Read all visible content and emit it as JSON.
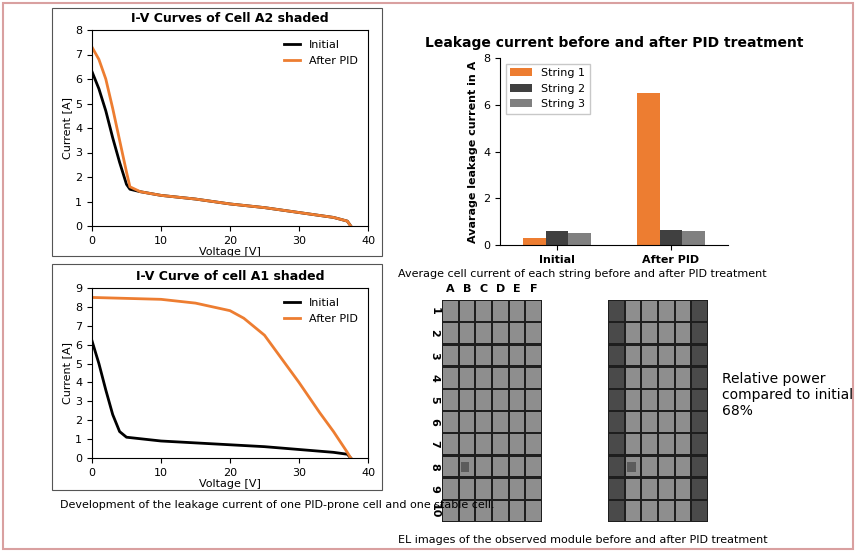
{
  "chart_data": [
    {
      "type": "line",
      "title": "I-V Curves of Cell A2 shaded",
      "x_label": "Voltage [V]",
      "y_label": "Current [A]",
      "xlim": [
        0,
        40
      ],
      "xticks": [
        0,
        10,
        20,
        30,
        40
      ],
      "ylim": [
        0,
        8
      ],
      "yticks": [
        0,
        1,
        2,
        3,
        4,
        5,
        6,
        7,
        8
      ],
      "grid": false,
      "legend": "upper right",
      "series": [
        {
          "name": "Initial",
          "color": "#000000",
          "line_style": "solid",
          "x": [
            0,
            1,
            2,
            3,
            4,
            5,
            5.5,
            7,
            10,
            15,
            20,
            25,
            30,
            35,
            37,
            37.5
          ],
          "values": [
            6.3,
            5.6,
            4.7,
            3.6,
            2.6,
            1.7,
            1.5,
            1.4,
            1.25,
            1.1,
            0.9,
            0.75,
            0.55,
            0.35,
            0.2,
            0
          ]
        },
        {
          "name": "After PID",
          "color": "#ED7D31",
          "line_style": "solid",
          "x": [
            0,
            1,
            2,
            3,
            4,
            5,
            5.5,
            7,
            10,
            15,
            20,
            25,
            30,
            35,
            37,
            37.5
          ],
          "values": [
            7.3,
            6.8,
            6.0,
            4.8,
            3.5,
            2.2,
            1.6,
            1.4,
            1.25,
            1.1,
            0.9,
            0.75,
            0.55,
            0.35,
            0.2,
            0
          ]
        }
      ]
    },
    {
      "type": "line",
      "title": "I-V Curve of cell A1 shaded",
      "x_label": "Voltage [V]",
      "y_label": "Current [A]",
      "xlim": [
        0,
        40
      ],
      "xticks": [
        0,
        10,
        20,
        30,
        40
      ],
      "ylim": [
        0,
        9
      ],
      "yticks": [
        0,
        1,
        2,
        3,
        4,
        5,
        6,
        7,
        8,
        9
      ],
      "grid": false,
      "legend": "upper right",
      "series": [
        {
          "name": "Initial",
          "color": "#000000",
          "line_style": "solid",
          "x": [
            0,
            1,
            2,
            3,
            4,
            5,
            10,
            15,
            20,
            25,
            30,
            35,
            37,
            37.5
          ],
          "values": [
            6.2,
            5.0,
            3.6,
            2.3,
            1.4,
            1.1,
            0.9,
            0.8,
            0.7,
            0.6,
            0.45,
            0.3,
            0.2,
            0
          ]
        },
        {
          "name": "After PID",
          "color": "#ED7D31",
          "line_style": "solid",
          "x": [
            0,
            5,
            10,
            15,
            20,
            22,
            25,
            28,
            30,
            33,
            35,
            37,
            37.5
          ],
          "values": [
            8.5,
            8.45,
            8.4,
            8.2,
            7.8,
            7.4,
            6.5,
            5.0,
            4.0,
            2.4,
            1.4,
            0.3,
            0
          ]
        }
      ]
    },
    {
      "type": "bar",
      "title": "Leakage current before and after PID treatment",
      "y_label": "Avarage leakage current in A",
      "categories": [
        "Initial",
        "After PID"
      ],
      "ylim": [
        0,
        8
      ],
      "yticks": [
        0,
        2,
        4,
        6,
        8
      ],
      "grid": false,
      "legend": "upper left",
      "series": [
        {
          "name": "String 1",
          "color": "#ED7D31",
          "values": [
            0.3,
            6.5
          ]
        },
        {
          "name": "String 2",
          "color": "#404040",
          "values": [
            0.6,
            0.65
          ]
        },
        {
          "name": "String 3",
          "color": "#808080",
          "values": [
            0.5,
            0.6
          ]
        }
      ]
    }
  ],
  "captions": [
    "Development of the leakage current of one PID-prone cell and one stable cell.",
    "Average cell current of each string before and after PID treatment",
    "EL images of the observed module before and after PID treatment"
  ],
  "el_images": {
    "columns": [
      "A",
      "B",
      "C",
      "D",
      "E",
      "F"
    ],
    "rows": [
      1,
      2,
      3,
      4,
      5,
      6,
      7,
      8,
      9,
      10
    ],
    "note": "Relative power compared to initial 68%"
  }
}
